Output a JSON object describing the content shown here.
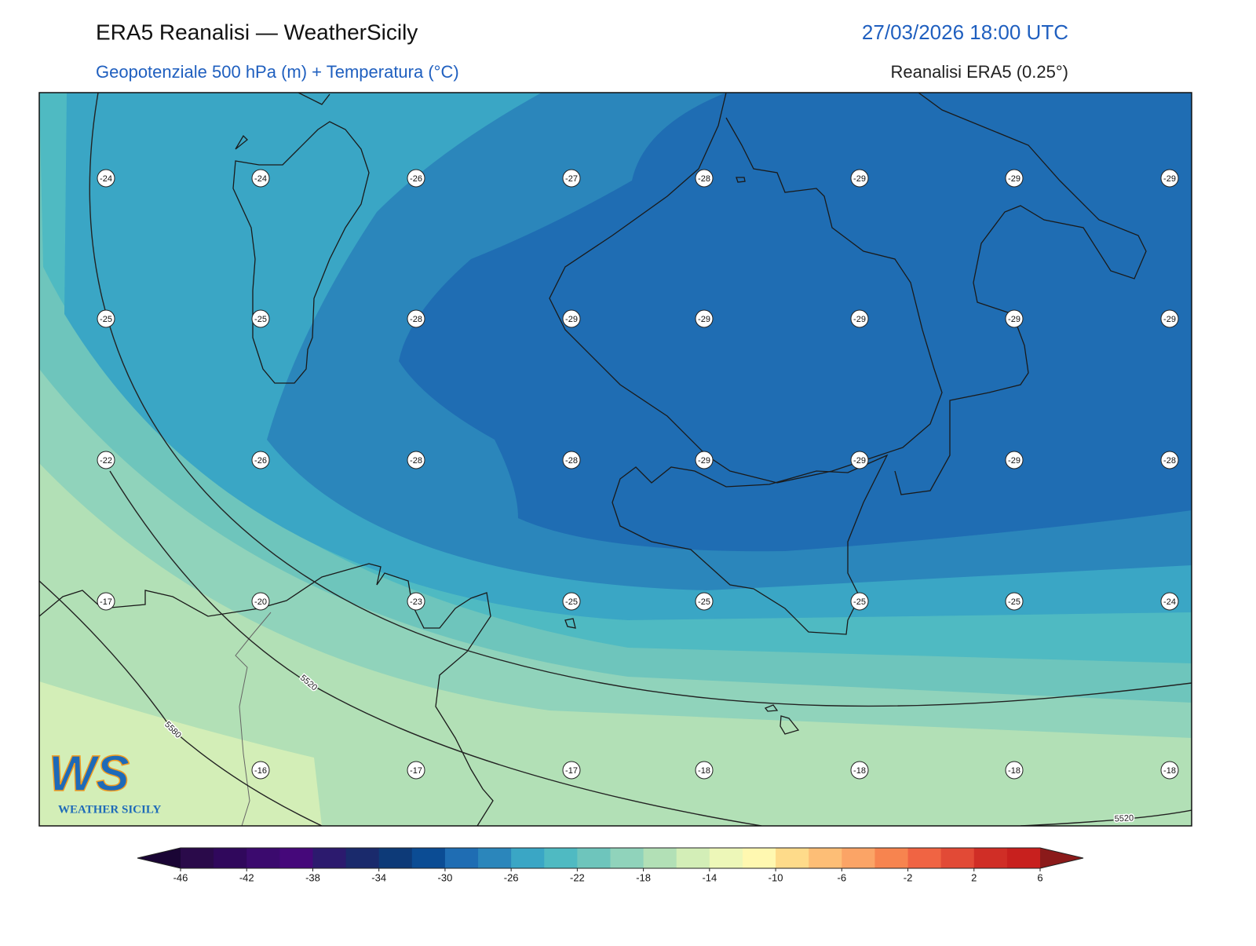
{
  "header": {
    "title": "ERA5 Reanalisi — WeatherSicily",
    "date": "27/03/2026 18:00 UTC",
    "subtitle": "Geopotenziale 500 hPa (m) + Temperatura (°C)",
    "source": "Reanalisi ERA5 (0.25°)"
  },
  "map": {
    "temperature_grid": [
      [
        -24,
        -24,
        -26,
        -27,
        -28,
        -29,
        -29,
        -29
      ],
      [
        -25,
        -25,
        -28,
        -29,
        -29,
        -29,
        -29,
        -29
      ],
      [
        -22,
        -26,
        -28,
        -28,
        -29,
        -29,
        -29,
        -28
      ],
      [
        -17,
        -20,
        -23,
        -25,
        -25,
        -25,
        -25,
        -24
      ],
      [
        null,
        -16,
        -17,
        -17,
        -18,
        -18,
        -18,
        -18
      ]
    ],
    "contour_labels": [
      5520,
      5580,
      5520
    ]
  },
  "colorbar": {
    "lim": [
      -46,
      6
    ],
    "ticks": [
      -46,
      -42,
      -38,
      -34,
      -30,
      -26,
      -22,
      -18,
      -14,
      -10,
      -6,
      -2,
      2,
      6
    ],
    "colors": [
      "#2a0a4a",
      "#30085c",
      "#3b0a6e",
      "#45087a",
      "#2c1a6e",
      "#1a2a6c",
      "#0d3a78",
      "#0b4c94",
      "#1f6db3",
      "#2b86bb",
      "#3aa6c5",
      "#4fbac2",
      "#6ec5bc",
      "#90d3bb",
      "#b2e0b6",
      "#d3eeb7",
      "#edf7b8",
      "#fff8b0",
      "#fedb8a",
      "#fdbe76",
      "#fba466",
      "#f7844f",
      "#f06443",
      "#e24a36",
      "#d02e26",
      "#c8201e"
    ],
    "under_color": "#1a0535",
    "over_color": "#8b1a1a"
  },
  "logo": {
    "mark": "WS",
    "text": "WEATHER SICILY"
  }
}
